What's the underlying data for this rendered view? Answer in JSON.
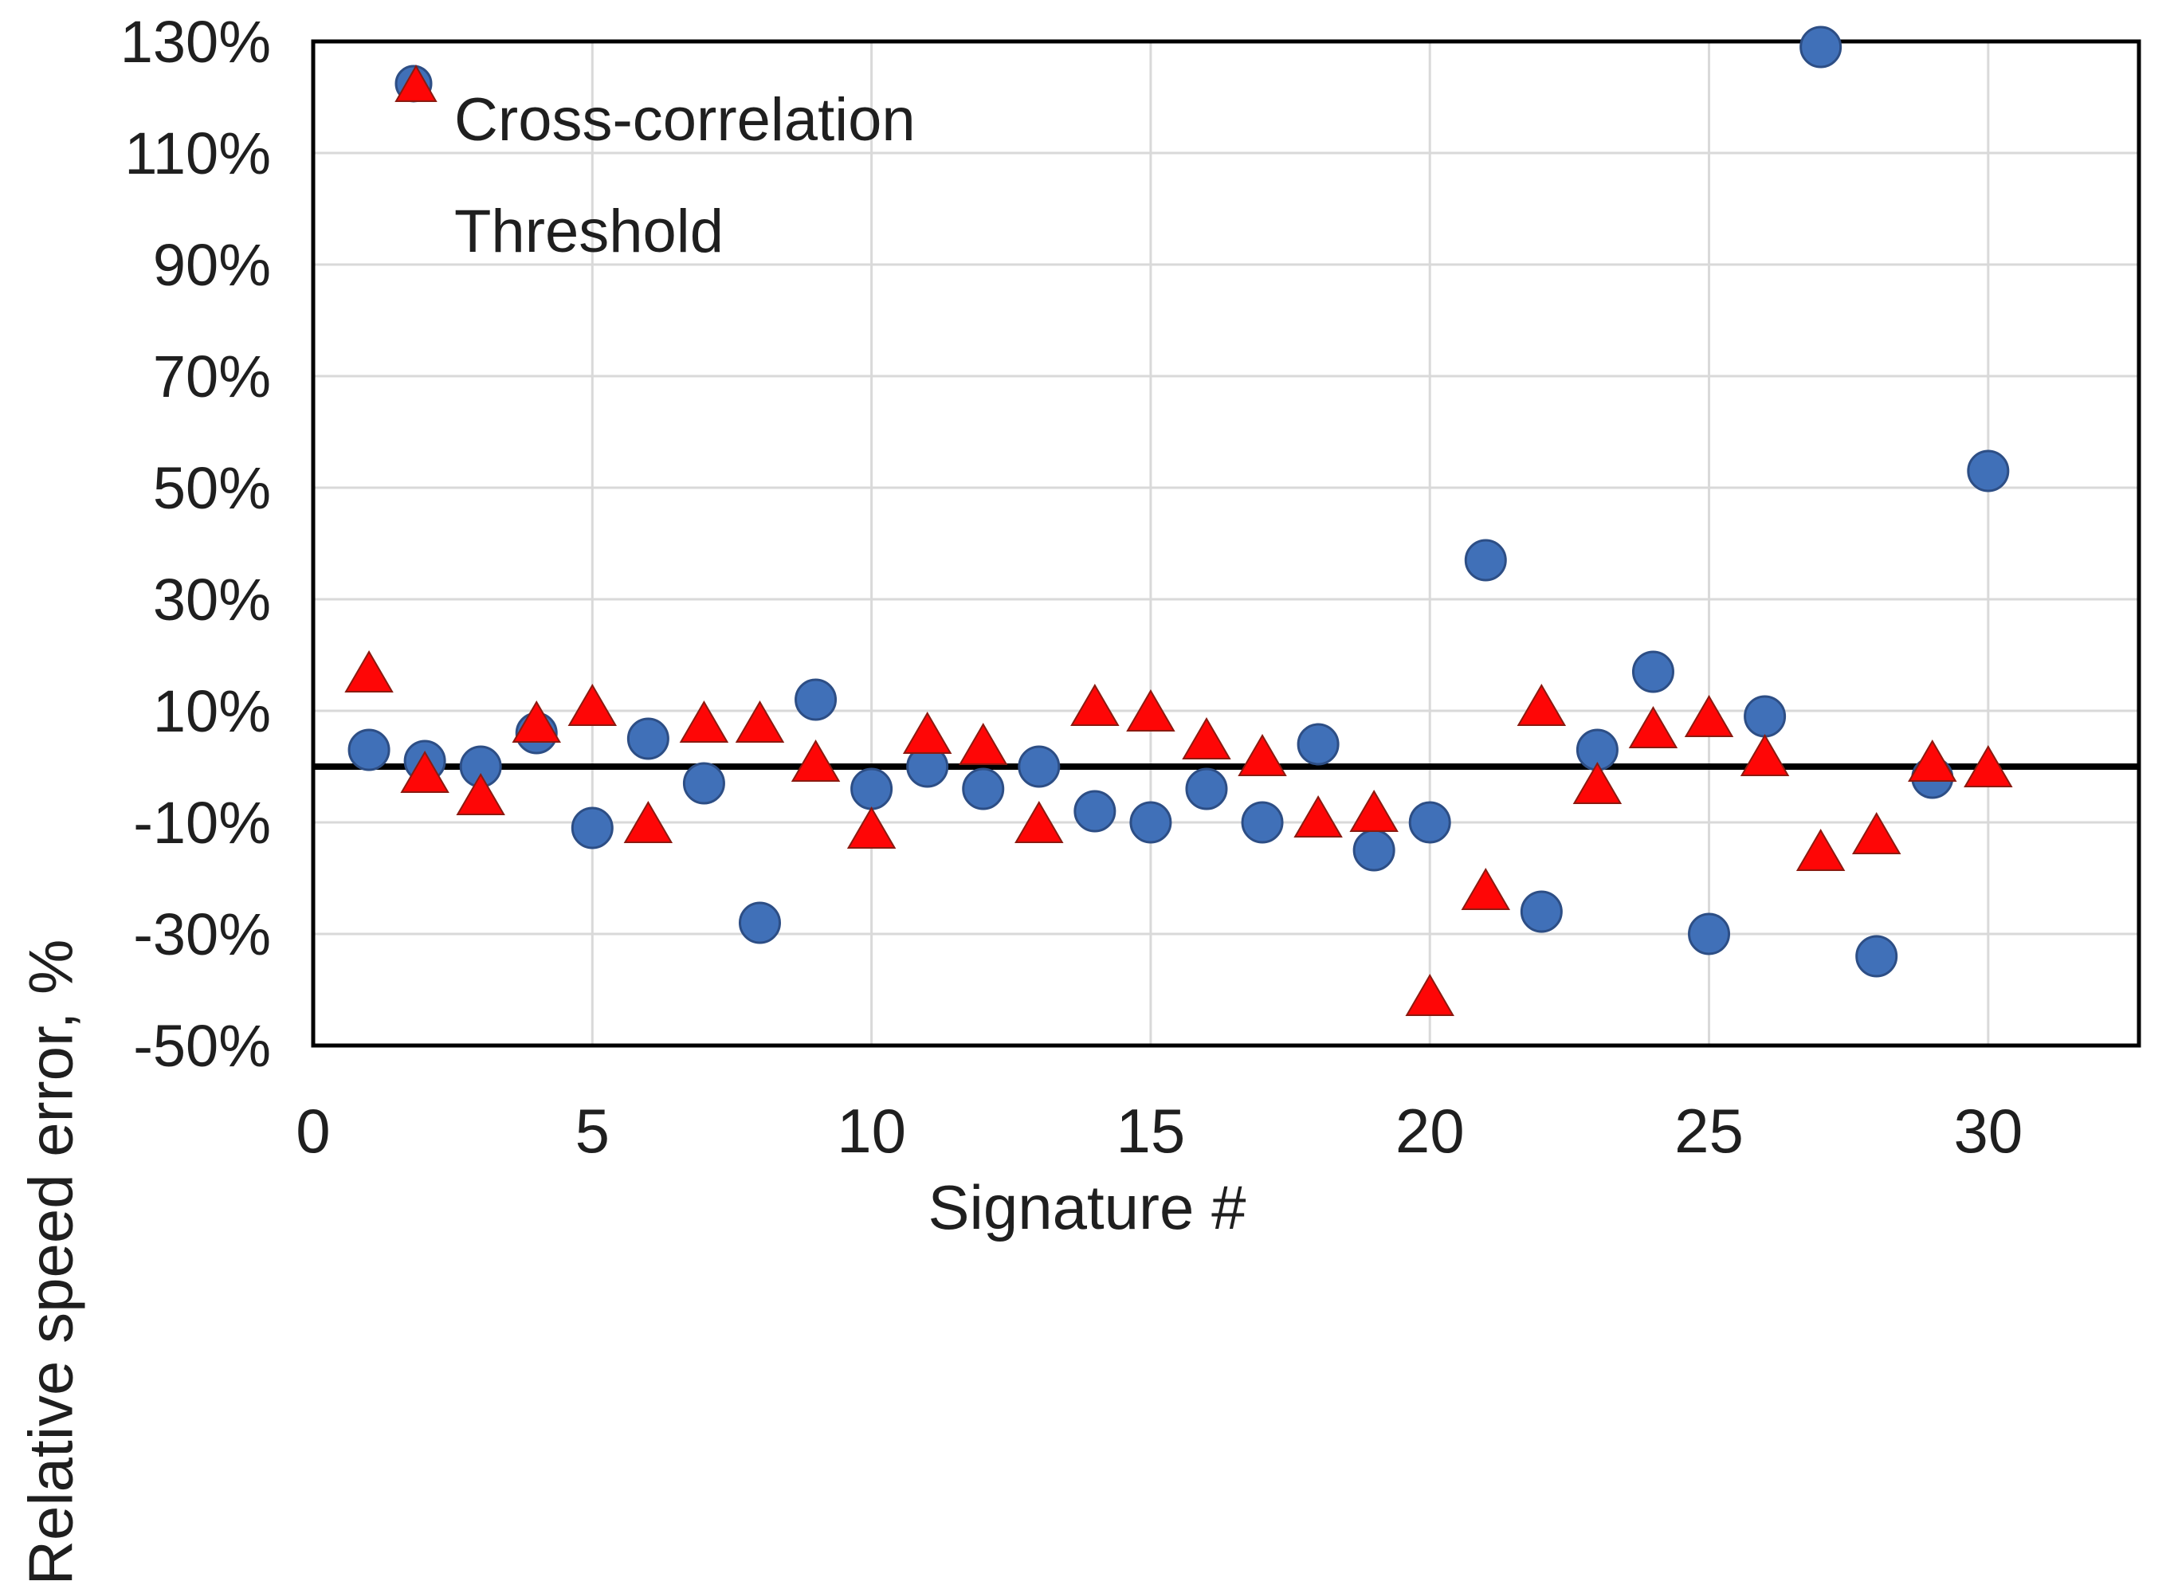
{
  "chart_data": {
    "type": "scatter",
    "title": "",
    "xlabel": "Signature #",
    "ylabel": "Relative speed error, %",
    "xlim": [
      0,
      32.7
    ],
    "ylim": [
      -50,
      130
    ],
    "grid": true,
    "legend_position": "top-left-inside",
    "x_ticks": [
      {
        "v": 0,
        "label": "0"
      },
      {
        "v": 5,
        "label": "5"
      },
      {
        "v": 10,
        "label": "10"
      },
      {
        "v": 15,
        "label": "15"
      },
      {
        "v": 20,
        "label": "20"
      },
      {
        "v": 25,
        "label": "25"
      },
      {
        "v": 30,
        "label": "30"
      }
    ],
    "y_ticks": [
      {
        "v": 130,
        "label": "130%"
      },
      {
        "v": 110,
        "label": "110%"
      },
      {
        "v": 90,
        "label": "90%"
      },
      {
        "v": 70,
        "label": "70%"
      },
      {
        "v": 50,
        "label": "50%"
      },
      {
        "v": 30,
        "label": "30%"
      },
      {
        "v": 10,
        "label": "10%"
      },
      {
        "v": -10,
        "label": "-10%"
      },
      {
        "v": -30,
        "label": "-30%"
      },
      {
        "v": -50,
        "label": "-50%"
      }
    ],
    "zero_line": true,
    "colors": {
      "grid": "#d9d9d9",
      "border": "#000000",
      "zero_line": "#000000",
      "text": "#1f1f1f"
    },
    "series": [
      {
        "name": "Cross-correlation",
        "marker": "circle",
        "fill": "#4070b8",
        "stroke": "#2d4e85",
        "x": [
          1,
          2,
          3,
          4,
          5,
          6,
          7,
          8,
          9,
          10,
          11,
          12,
          13,
          14,
          15,
          16,
          17,
          18,
          19,
          20,
          21,
          22,
          23,
          24,
          25,
          26,
          27,
          28,
          29,
          30
        ],
        "y": [
          3,
          1,
          0,
          6,
          -11,
          5,
          -3,
          -28,
          12,
          -4,
          0,
          -4,
          0,
          -8,
          -10,
          -4,
          -10,
          4,
          -15,
          -10,
          37,
          -26,
          3,
          17,
          -30,
          9,
          129,
          -34,
          -2,
          53
        ]
      },
      {
        "name": "Threshold",
        "marker": "triangle",
        "fill": "#fe0606",
        "stroke": "#8b1a10",
        "x": [
          1,
          2,
          3,
          4,
          5,
          6,
          7,
          8,
          9,
          10,
          11,
          12,
          13,
          14,
          15,
          16,
          17,
          18,
          19,
          20,
          21,
          22,
          23,
          24,
          25,
          26,
          27,
          28,
          29,
          30
        ],
        "y": [
          17,
          -1,
          -5,
          8,
          11,
          -10,
          8,
          8,
          1,
          -11,
          6,
          4,
          -10,
          11,
          10,
          5,
          2,
          -9,
          -8,
          -41,
          -22,
          11,
          -3,
          7,
          9,
          2,
          -15,
          -12,
          1,
          0
        ]
      }
    ]
  },
  "legend": {
    "items": [
      {
        "label": "Cross-correlation"
      },
      {
        "label": "Threshold"
      }
    ]
  },
  "titles": {
    "x": "Signature #",
    "y": "Relative speed error, %"
  }
}
